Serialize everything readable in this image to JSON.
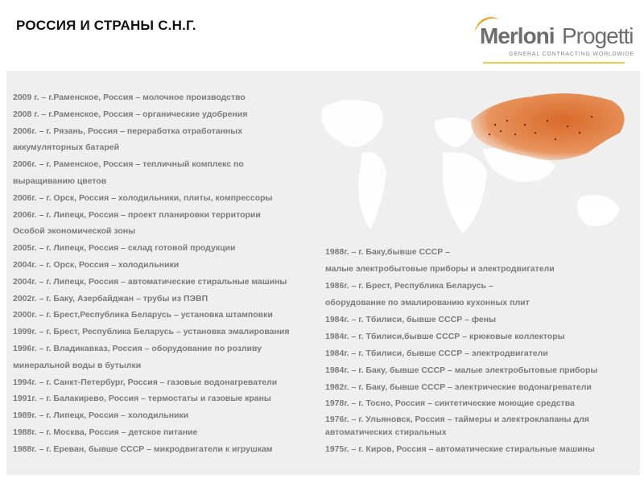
{
  "header": {
    "title": "РОССИЯ И СТРАНЫ С.Н.Г.",
    "logo": {
      "name": "MerloniProgetti",
      "part1": "Merloni",
      "part2": "Progetti",
      "tagline": "GENERAL CONTRACTING WORLDWIDE"
    }
  },
  "colors": {
    "accent_orange": "#e07a2e",
    "logo_yellow": "#f2c94c",
    "text_gray": "#7b7b7b",
    "panel": "#efefef"
  },
  "left_lines": [
    "2009 г. – г.Раменское, Россия – молочное производство",
    "2008 г. – г.Раменское, Россия – органические удобрения",
    "2006г. – г. Рязань, Россия – переработка отработанных",
    "аккумуляторных батарей",
    "2006г. – г. Раменское, Россия – тепличный комплекс по",
    "выращиванию цветов",
    "2006г. – г. Орск, Россия – холодильники, плиты, компрессоры",
    "2006г. – г. Липецк, Россия – проект планировки территории",
    "Особой экономической зоны",
    "2005г. – г. Липецк, Россия – склад готовой продукции",
    "2004г. – г. Орск, Россия – холодильники",
    "2004г. – г. Липецк, Россия – автоматические стиральные машины",
    "2002г. – г. Баку, Азербайджан – трубы из ПЭВП",
    "2000г. – г. Брест,Республика Беларусь – установка штамповки",
    "1999г. – г. Брест, Республика Беларусь – установка эмалирования",
    "1996г. – г. Владикавказ, Россия – оборудование по розливу",
    "минеральной воды в бутылки",
    "1994г. – г. Санкт-Петербург, Россия – газовые водонагреватели",
    "1991г. – г. Балакирево, Россия – термостаты и газовые краны",
    "1989г. – г. Липецк, Россия – холодильники",
    "1988г. – г. Москва, Россия – детское питание",
    "1988г. – г. Ереван, бывше СССР – микродвигатели к игрушкам"
  ],
  "right_lines": [
    "1988г. – г. Баку,бывше СССР –",
    "малые электробытовые приборы и электродвигатели",
    "1986г. – г. Брест, Республика Беларусь –",
    "оборудование по эмалированию кухонных плит",
    "1984г. – г. Тбилиси, бывше СССР – фены",
    "1984г. – г. Тбилиси,бывше СССР – крюковые коллекторы",
    "1984г. – г. Тбилиси, бывше СССР – электродвигатели",
    "1984г. – г. Баку, бывше СССР – малые электробытовые приборы",
    "1982г. – г. Баку, бывше СССР – электрические водонагреватели",
    "1978г. – г. Тосно, Россия – синтетические моющие средства",
    "1976г. – г. Ульяновск, Россия – таймеры и электроклапаны для",
    "автоматических стиральных",
    "1975г. – г. Киров, Россия – автоматические стиральные машины"
  ]
}
